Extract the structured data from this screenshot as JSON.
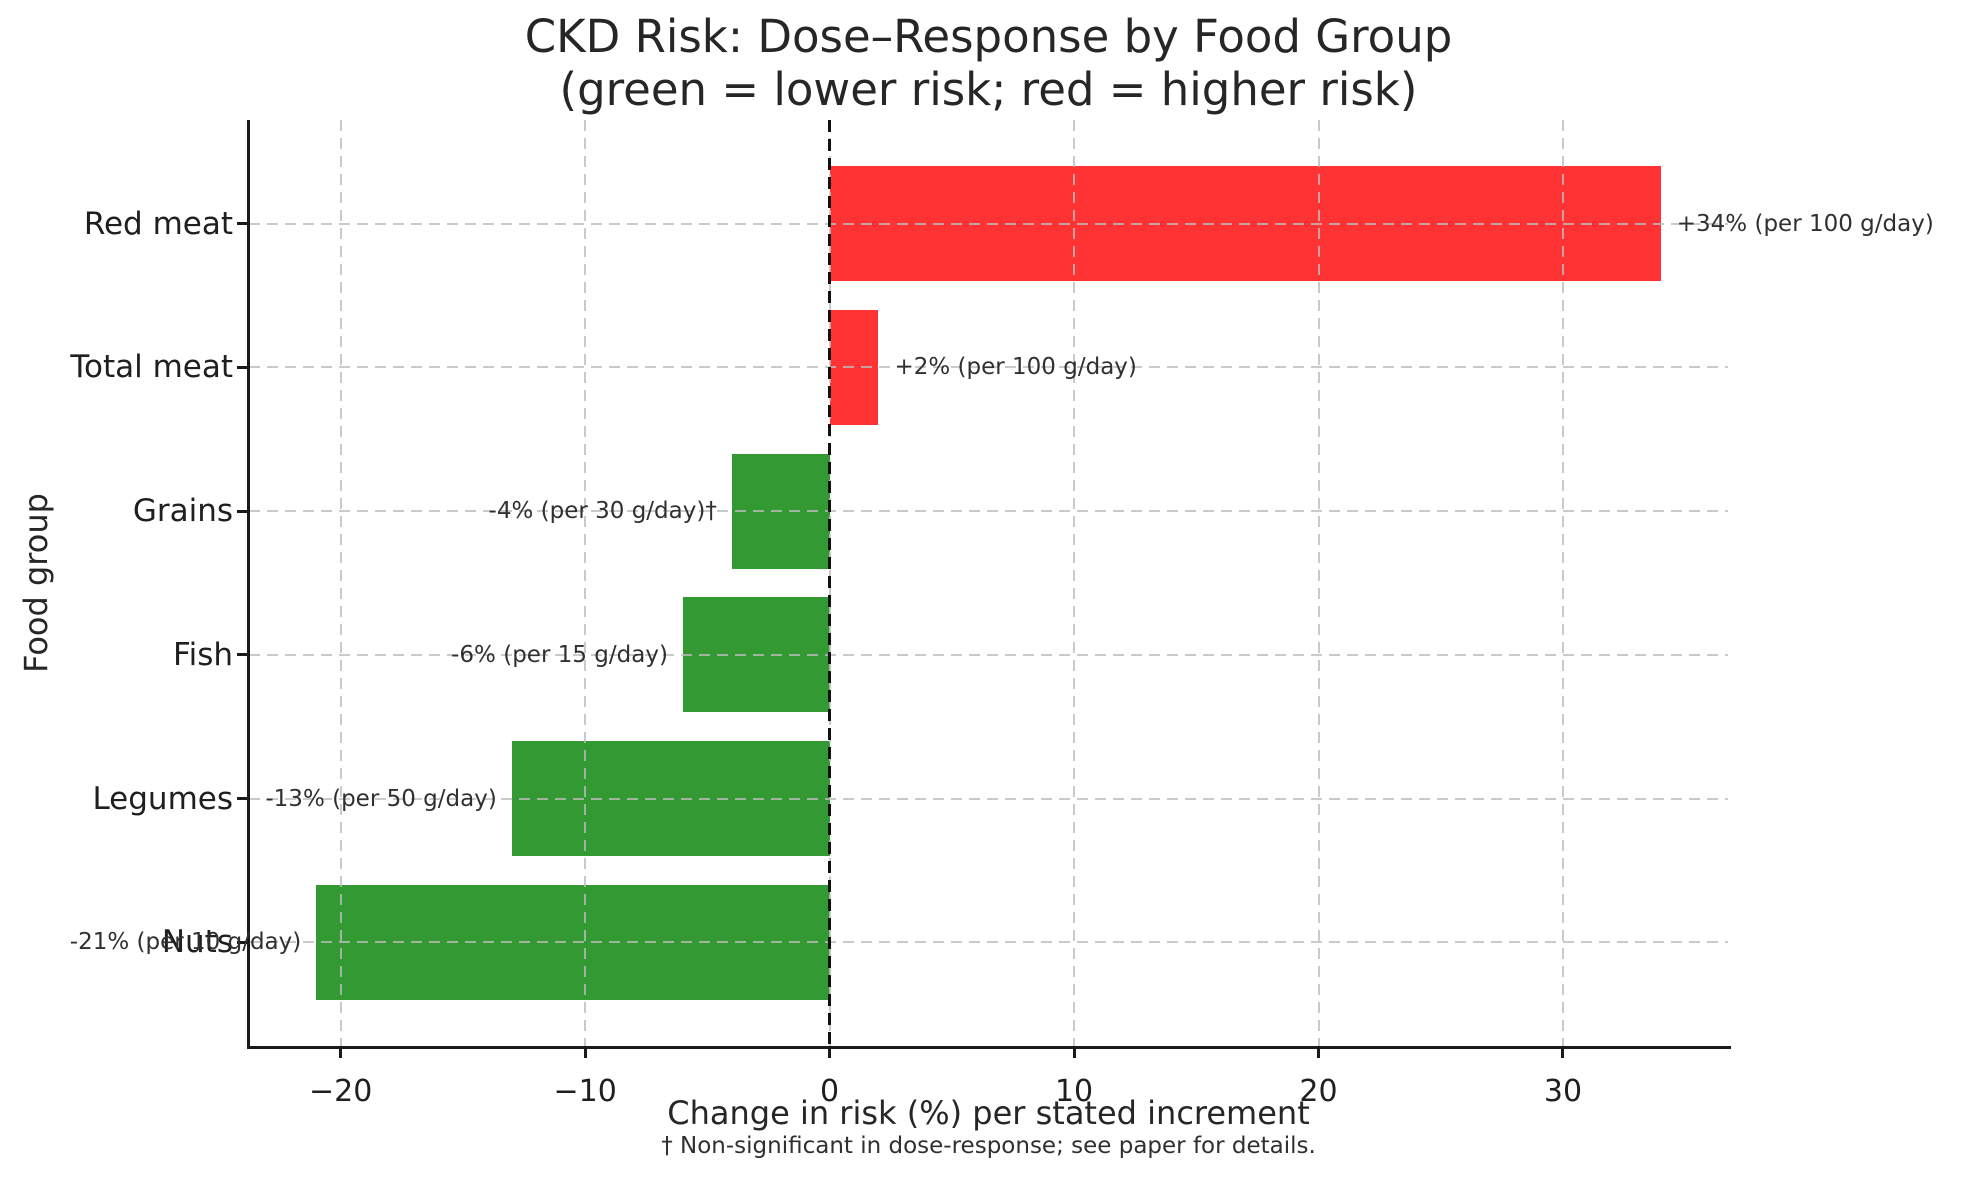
{
  "chart_data": {
    "type": "bar",
    "orientation": "horizontal",
    "title": "CKD Risk: Dose–Response by Food Group",
    "subtitle": "(green = lower risk; red = higher risk)",
    "xlabel": "Change in risk (%) per stated increment",
    "ylabel": "Food group",
    "footnote": "† Non-significant in dose-response; see paper for details.",
    "categories": [
      "Red meat",
      "Total meat",
      "Grains",
      "Fish",
      "Legumes",
      "Nuts"
    ],
    "values": [
      34,
      2,
      -4,
      -6,
      -13,
      -21
    ],
    "annotations": [
      "+34% (per 100 g/day)",
      "+2% (per 100 g/day)",
      "-4% (per 30 g/day)†",
      "-6% (per 15 g/day)",
      "-13% (per 50 g/day)",
      "-21% (per 10 g/day)"
    ],
    "bar_colors": [
      "#ff3333",
      "#ff3333",
      "#339933",
      "#339933",
      "#339933",
      "#339933"
    ],
    "increase_color": "#ff3333",
    "decrease_color": "#339933",
    "grid_color": "#bcbcbc",
    "zero_line_color": "#111111",
    "xticks": [
      -20,
      -10,
      0,
      10,
      20,
      30
    ],
    "xtick_labels": [
      "−20",
      "−10",
      "0",
      "10",
      "20",
      "30"
    ],
    "xlim": [
      -23.75,
      36.75
    ],
    "grid": true,
    "grid_style": "dashed",
    "zero_line": true,
    "legend_position": "none"
  }
}
